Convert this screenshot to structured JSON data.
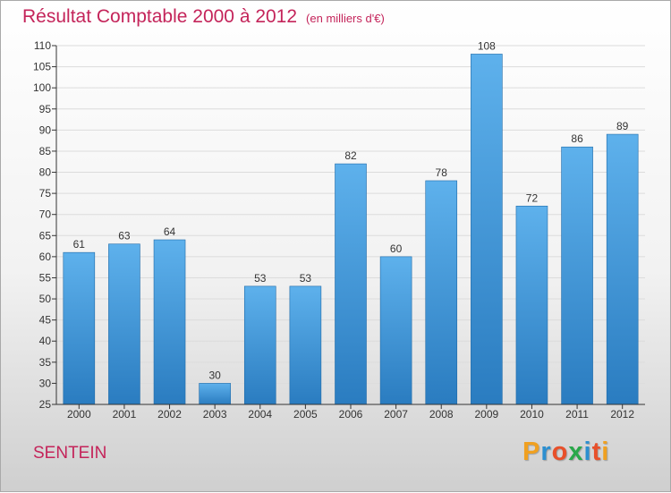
{
  "chart_data": {
    "type": "bar",
    "title": "Résultat Comptable 2000 à 2012",
    "subtitle": "(en milliers d'€)",
    "categories": [
      "2000",
      "2001",
      "2002",
      "2003",
      "2004",
      "2005",
      "2006",
      "2007",
      "2008",
      "2009",
      "2010",
      "2011",
      "2012"
    ],
    "values": [
      61,
      63,
      64,
      30,
      53,
      53,
      82,
      60,
      78,
      108,
      72,
      86,
      89
    ],
    "xlabel": "",
    "ylabel": "",
    "ylim": [
      25,
      110
    ],
    "yticks": [
      25,
      30,
      35,
      40,
      45,
      50,
      55,
      60,
      65,
      70,
      75,
      80,
      85,
      90,
      95,
      100,
      105,
      110
    ],
    "grid": true,
    "bar_color": "#4a9fe0"
  },
  "footer": {
    "commune": "SENTEIN",
    "logo": {
      "letters": [
        "P",
        "r",
        "o",
        "x",
        "i",
        "t",
        "i"
      ],
      "colors": [
        "#f0a020",
        "#2c8fd0",
        "#e8502a",
        "#2aa84a",
        "#2c8fd0",
        "#e8502a",
        "#f0a020"
      ]
    }
  }
}
